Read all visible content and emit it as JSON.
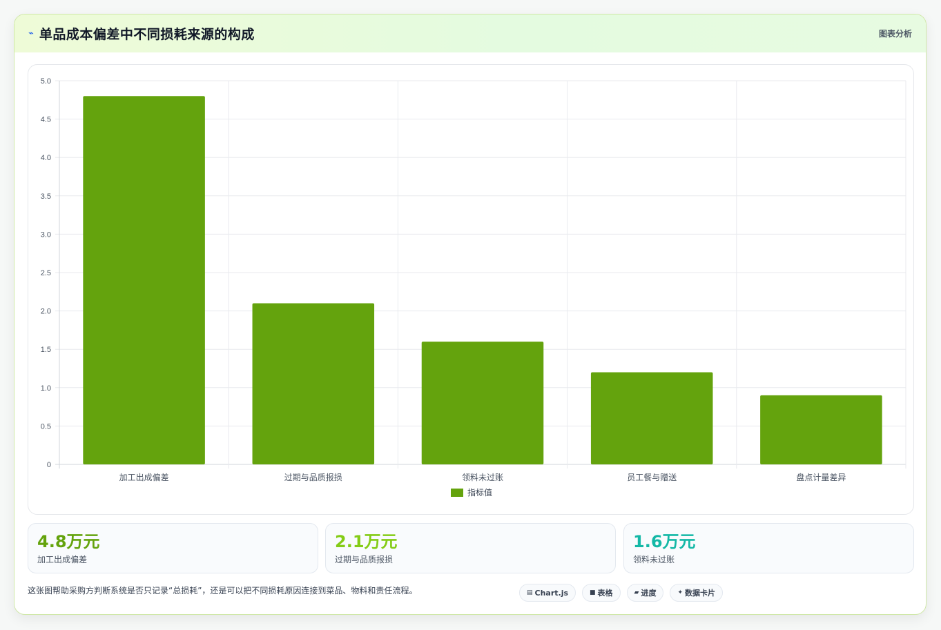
{
  "header": {
    "icon": "trend-line-icon",
    "title": "单品成本偏差中不同损耗来源的构成",
    "tag": "图表分析"
  },
  "colors": {
    "bar": "#64a30d",
    "kpi1": "#64a30d",
    "kpi2": "#84cc16",
    "kpi3": "#14b8a6"
  },
  "chart_data": {
    "type": "bar",
    "categories": [
      "加工出成偏差",
      "过期与品质报损",
      "领料未过账",
      "员工餐与赠送",
      "盘点计量差异"
    ],
    "series": [
      {
        "name": "指标值",
        "values": [
          4.8,
          2.1,
          1.6,
          1.2,
          0.9
        ]
      }
    ],
    "ylim": [
      0,
      5
    ],
    "yticks": [
      "0",
      "0.5",
      "1.0",
      "1.5",
      "2.0",
      "2.5",
      "3.0",
      "3.5",
      "4.0",
      "4.5",
      "5.0"
    ],
    "grid": true,
    "legend": "bottom"
  },
  "kpis": [
    {
      "value": "4.8万元",
      "label": "加工出成偏差"
    },
    {
      "value": "2.1万元",
      "label": "过期与品质报损"
    },
    {
      "value": "1.6万元",
      "label": "领料未过账"
    }
  ],
  "footer": {
    "text": "这张图帮助采购方判断系统是否只记录“总损耗”，还是可以把不同损耗原因连接到菜品、物料和责任流程。"
  },
  "pills": [
    {
      "icon": "chart-icon",
      "glyph": "▤",
      "label": "Chart.js"
    },
    {
      "icon": "table-icon",
      "glyph": "■",
      "label": "表格"
    },
    {
      "icon": "progress-icon",
      "glyph": "▰",
      "label": "进度"
    },
    {
      "icon": "card-icon",
      "glyph": "✦",
      "label": "数据卡片"
    }
  ]
}
